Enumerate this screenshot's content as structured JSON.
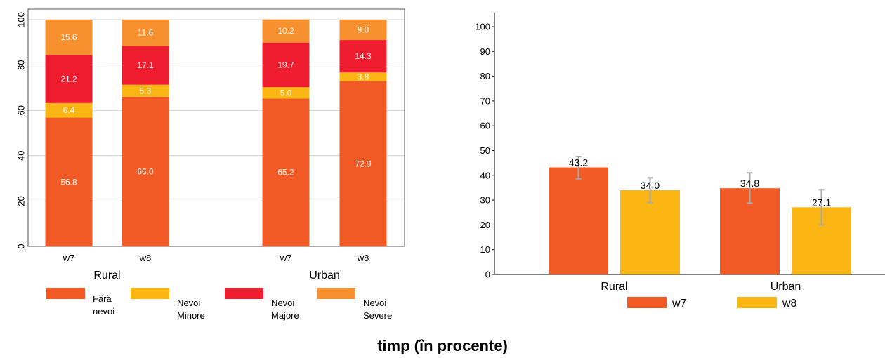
{
  "caption": "timp (în procente)",
  "chart_data": [
    {
      "type": "bar",
      "stacked": true,
      "ylim": [
        0,
        100
      ],
      "yticks": [
        0,
        20,
        40,
        60,
        80,
        100
      ],
      "groups": [
        {
          "label": "Rural",
          "bars": [
            {
              "label": "w7",
              "values": [
                56.8,
                6.4,
                21.2,
                15.6
              ]
            },
            {
              "label": "w8",
              "values": [
                66.0,
                5.3,
                17.1,
                11.6
              ]
            }
          ]
        },
        {
          "label": "Urban",
          "bars": [
            {
              "label": "w7",
              "values": [
                65.2,
                5.0,
                19.7,
                10.2
              ]
            },
            {
              "label": "w8",
              "values": [
                72.9,
                3.8,
                14.3,
                9.0
              ]
            }
          ]
        }
      ],
      "series": [
        {
          "name": "Fără nevoi",
          "color": "#f15a24"
        },
        {
          "name": "Nevoi Minore",
          "color": "#fbb614"
        },
        {
          "name": "Nevoi Majore",
          "color": "#ed1c2e"
        },
        {
          "name": "Nevoi Severe",
          "color": "#f7902f"
        }
      ],
      "grid": true,
      "legend": "bottom"
    },
    {
      "type": "bar",
      "categories": [
        "Rural",
        "Urban"
      ],
      "ylim": [
        0,
        100
      ],
      "yticks": [
        0,
        10,
        20,
        30,
        40,
        50,
        60,
        70,
        80,
        90,
        100
      ],
      "series": [
        {
          "name": "w7",
          "color": "#f15a24",
          "values": [
            43.2,
            34.8
          ],
          "error_low": [
            38.6,
            28.8
          ],
          "error_high": [
            47.6,
            41.0
          ]
        },
        {
          "name": "w8",
          "color": "#fbb614",
          "values": [
            34.0,
            27.1
          ],
          "error_low": [
            29.0,
            20.0
          ],
          "error_high": [
            39.0,
            34.2
          ]
        }
      ],
      "grid": false,
      "legend": "bottom"
    }
  ]
}
